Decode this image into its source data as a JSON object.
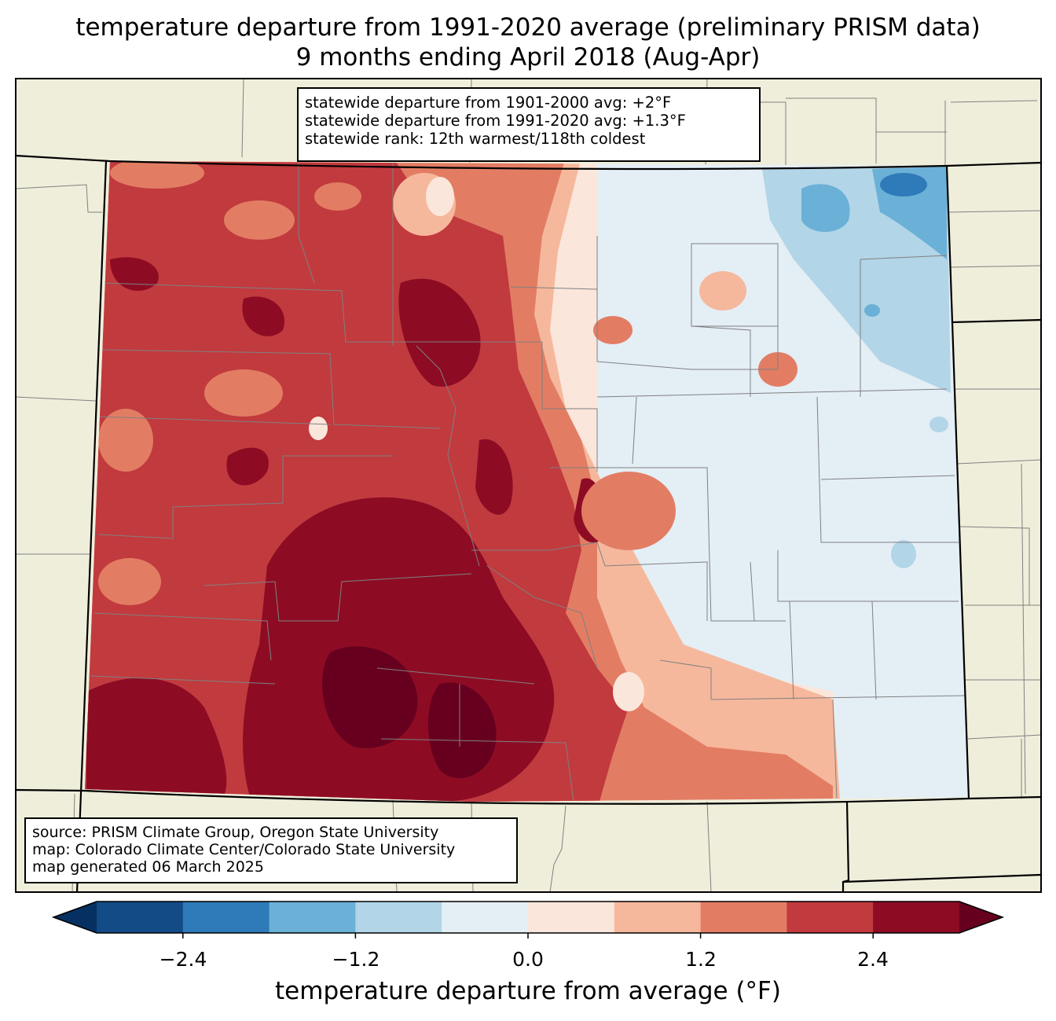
{
  "title": {
    "line1": "temperature departure from 1991-2020 average (preliminary PRISM data)",
    "line2": "9 months ending April 2018 (Aug-Apr)"
  },
  "stats": {
    "line1": "statewide departure from 1901-2000 avg: +2°F",
    "line2": "statewide departure from 1991-2020 avg: +1.3°F",
    "line3": "statewide rank: 12th warmest/118th coldest"
  },
  "source": {
    "line1": "source: PRISM Climate Group, Oregon State University",
    "line2": "map: Colorado Climate Center/Colorado State University",
    "line3": "map generated 06 March 2025"
  },
  "colorbar": {
    "label": "temperature departure from average (°F)",
    "ticks": [
      "−2.4",
      "−1.2",
      "0.0",
      "1.2",
      "2.4"
    ],
    "bins": [
      {
        "min": -3.0,
        "max": -2.4,
        "color": "#134b87"
      },
      {
        "min": -2.4,
        "max": -1.8,
        "color": "#2f7ab8"
      },
      {
        "min": -1.8,
        "max": -1.2,
        "color": "#6bb0d6"
      },
      {
        "min": -1.2,
        "max": -0.6,
        "color": "#b2d5e7"
      },
      {
        "min": -0.6,
        "max": 0.0,
        "color": "#e4eef5"
      },
      {
        "min": 0.0,
        "max": 0.6,
        "color": "#fbe6dc"
      },
      {
        "min": 0.6,
        "max": 1.2,
        "color": "#f6b89c"
      },
      {
        "min": 1.2,
        "max": 1.8,
        "color": "#e27d64"
      },
      {
        "min": 1.8,
        "max": 2.4,
        "color": "#c13a3e"
      },
      {
        "min": 2.4,
        "max": 3.0,
        "color": "#8d0c24"
      }
    ],
    "under_color": "#053061",
    "over_color": "#67001f"
  },
  "map_colors": {
    "land_outside": "#efeedb",
    "county_lines": "#808080",
    "state_lines": "#000000"
  }
}
